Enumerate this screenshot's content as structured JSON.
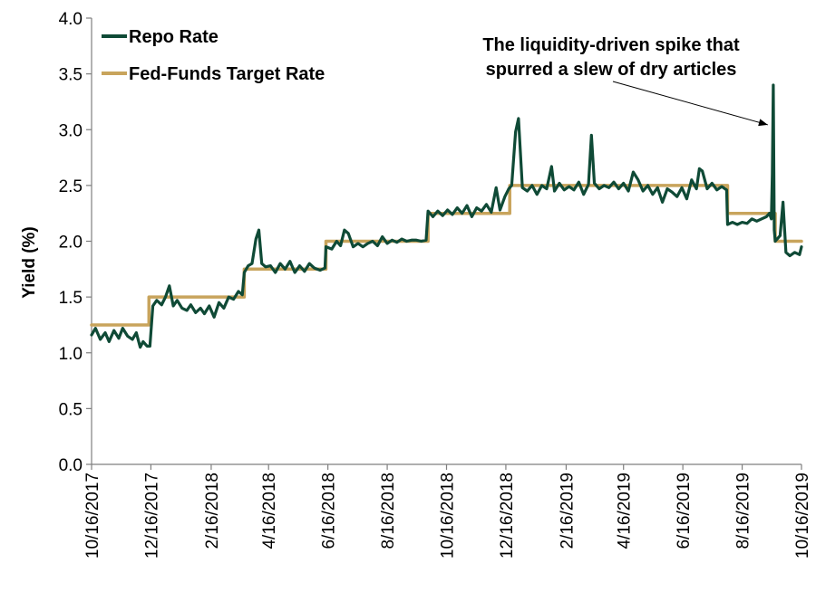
{
  "chart_data": {
    "type": "line",
    "title": "",
    "xlabel": "",
    "ylabel": "Yield (%)",
    "ylim": [
      0,
      4.0
    ],
    "yticks": [
      "0.0",
      "0.5",
      "1.0",
      "1.5",
      "2.0",
      "2.5",
      "3.0",
      "3.5",
      "4.0"
    ],
    "xlim": [
      "2017-10-16",
      "2019-10-16"
    ],
    "xticks": [
      "10/16/2017",
      "12/16/2017",
      "2/16/2018",
      "4/16/2018",
      "6/16/2018",
      "8/16/2018",
      "10/16/2018",
      "12/16/2018",
      "2/16/2019",
      "4/16/2019",
      "6/16/2019",
      "8/16/2019",
      "10/16/2019"
    ],
    "grid": false,
    "legend": "top-left",
    "annotation": {
      "lines": [
        "The liquidity-driven spike that",
        "spurred a slew of dry articles"
      ],
      "points_to": {
        "x": "2019-09-17",
        "y": 3.4
      }
    },
    "series": [
      {
        "name": "Repo Rate",
        "color": "#0f4a36",
        "points": [
          [
            "2017-10-16",
            1.16
          ],
          [
            "2017-10-20",
            1.22
          ],
          [
            "2017-10-25",
            1.12
          ],
          [
            "2017-10-30",
            1.18
          ],
          [
            "2017-11-03",
            1.1
          ],
          [
            "2017-11-08",
            1.2
          ],
          [
            "2017-11-13",
            1.13
          ],
          [
            "2017-11-17",
            1.22
          ],
          [
            "2017-11-22",
            1.15
          ],
          [
            "2017-11-27",
            1.12
          ],
          [
            "2017-12-01",
            1.18
          ],
          [
            "2017-12-05",
            1.05
          ],
          [
            "2017-12-08",
            1.1
          ],
          [
            "2017-12-12",
            1.06
          ],
          [
            "2017-12-15",
            1.06
          ],
          [
            "2017-12-18",
            1.42
          ],
          [
            "2017-12-22",
            1.47
          ],
          [
            "2017-12-27",
            1.43
          ],
          [
            "2017-12-31",
            1.5
          ],
          [
            "2018-01-04",
            1.6
          ],
          [
            "2018-01-08",
            1.42
          ],
          [
            "2018-01-12",
            1.47
          ],
          [
            "2018-01-17",
            1.4
          ],
          [
            "2018-01-22",
            1.38
          ],
          [
            "2018-01-26",
            1.43
          ],
          [
            "2018-01-31",
            1.36
          ],
          [
            "2018-02-05",
            1.4
          ],
          [
            "2018-02-09",
            1.35
          ],
          [
            "2018-02-14",
            1.42
          ],
          [
            "2018-02-19",
            1.32
          ],
          [
            "2018-02-24",
            1.45
          ],
          [
            "2018-03-01",
            1.4
          ],
          [
            "2018-03-06",
            1.5
          ],
          [
            "2018-03-11",
            1.48
          ],
          [
            "2018-03-16",
            1.55
          ],
          [
            "2018-03-20",
            1.52
          ],
          [
            "2018-03-22",
            1.72
          ],
          [
            "2018-03-26",
            1.78
          ],
          [
            "2018-03-30",
            1.8
          ],
          [
            "2018-04-03",
            2.02
          ],
          [
            "2018-04-06",
            2.1
          ],
          [
            "2018-04-09",
            1.8
          ],
          [
            "2018-04-13",
            1.77
          ],
          [
            "2018-04-18",
            1.78
          ],
          [
            "2018-04-23",
            1.72
          ],
          [
            "2018-04-28",
            1.8
          ],
          [
            "2018-05-03",
            1.75
          ],
          [
            "2018-05-08",
            1.82
          ],
          [
            "2018-05-13",
            1.72
          ],
          [
            "2018-05-18",
            1.78
          ],
          [
            "2018-05-23",
            1.73
          ],
          [
            "2018-05-28",
            1.8
          ],
          [
            "2018-06-02",
            1.76
          ],
          [
            "2018-06-08",
            1.74
          ],
          [
            "2018-06-13",
            1.76
          ],
          [
            "2018-06-14",
            1.95
          ],
          [
            "2018-06-20",
            1.93
          ],
          [
            "2018-06-25",
            2.0
          ],
          [
            "2018-06-29",
            1.96
          ],
          [
            "2018-07-03",
            2.1
          ],
          [
            "2018-07-07",
            2.07
          ],
          [
            "2018-07-12",
            1.95
          ],
          [
            "2018-07-17",
            1.98
          ],
          [
            "2018-07-22",
            1.95
          ],
          [
            "2018-07-27",
            1.98
          ],
          [
            "2018-08-01",
            2.0
          ],
          [
            "2018-08-06",
            1.96
          ],
          [
            "2018-08-11",
            2.04
          ],
          [
            "2018-08-16",
            1.98
          ],
          [
            "2018-08-21",
            2.01
          ],
          [
            "2018-08-26",
            1.99
          ],
          [
            "2018-08-31",
            2.02
          ],
          [
            "2018-09-05",
            2.0
          ],
          [
            "2018-09-10",
            2.01
          ],
          [
            "2018-09-15",
            2.01
          ],
          [
            "2018-09-20",
            2.0
          ],
          [
            "2018-09-25",
            2.01
          ],
          [
            "2018-09-27",
            2.27
          ],
          [
            "2018-10-02",
            2.22
          ],
          [
            "2018-10-07",
            2.27
          ],
          [
            "2018-10-12",
            2.23
          ],
          [
            "2018-10-17",
            2.28
          ],
          [
            "2018-10-22",
            2.24
          ],
          [
            "2018-10-27",
            2.3
          ],
          [
            "2018-11-01",
            2.25
          ],
          [
            "2018-11-06",
            2.32
          ],
          [
            "2018-11-11",
            2.22
          ],
          [
            "2018-11-16",
            2.3
          ],
          [
            "2018-11-21",
            2.27
          ],
          [
            "2018-11-26",
            2.33
          ],
          [
            "2018-12-01",
            2.26
          ],
          [
            "2018-12-06",
            2.48
          ],
          [
            "2018-12-10",
            2.28
          ],
          [
            "2018-12-15",
            2.4
          ],
          [
            "2018-12-19",
            2.47
          ],
          [
            "2018-12-22",
            2.5
          ],
          [
            "2018-12-26",
            2.98
          ],
          [
            "2018-12-29",
            3.1
          ],
          [
            "2019-01-02",
            2.48
          ],
          [
            "2019-01-07",
            2.45
          ],
          [
            "2019-01-12",
            2.5
          ],
          [
            "2019-01-17",
            2.42
          ],
          [
            "2019-01-22",
            2.5
          ],
          [
            "2019-01-27",
            2.47
          ],
          [
            "2019-02-01",
            2.67
          ],
          [
            "2019-02-04",
            2.45
          ],
          [
            "2019-02-09",
            2.52
          ],
          [
            "2019-02-14",
            2.46
          ],
          [
            "2019-02-19",
            2.49
          ],
          [
            "2019-02-24",
            2.46
          ],
          [
            "2019-03-01",
            2.53
          ],
          [
            "2019-03-06",
            2.42
          ],
          [
            "2019-03-11",
            2.51
          ],
          [
            "2019-03-14",
            2.95
          ],
          [
            "2019-03-17",
            2.52
          ],
          [
            "2019-03-22",
            2.47
          ],
          [
            "2019-03-27",
            2.5
          ],
          [
            "2019-04-01",
            2.48
          ],
          [
            "2019-04-06",
            2.53
          ],
          [
            "2019-04-11",
            2.47
          ],
          [
            "2019-04-16",
            2.52
          ],
          [
            "2019-04-21",
            2.45
          ],
          [
            "2019-04-26",
            2.62
          ],
          [
            "2019-05-01",
            2.55
          ],
          [
            "2019-05-06",
            2.45
          ],
          [
            "2019-05-11",
            2.5
          ],
          [
            "2019-05-16",
            2.42
          ],
          [
            "2019-05-21",
            2.48
          ],
          [
            "2019-05-26",
            2.35
          ],
          [
            "2019-05-31",
            2.47
          ],
          [
            "2019-06-05",
            2.44
          ],
          [
            "2019-06-10",
            2.4
          ],
          [
            "2019-06-15",
            2.48
          ],
          [
            "2019-06-20",
            2.38
          ],
          [
            "2019-06-25",
            2.55
          ],
          [
            "2019-06-30",
            2.47
          ],
          [
            "2019-07-03",
            2.65
          ],
          [
            "2019-07-06",
            2.63
          ],
          [
            "2019-07-11",
            2.47
          ],
          [
            "2019-07-16",
            2.52
          ],
          [
            "2019-07-21",
            2.46
          ],
          [
            "2019-07-26",
            2.49
          ],
          [
            "2019-07-31",
            2.46
          ],
          [
            "2019-08-01",
            2.15
          ],
          [
            "2019-08-06",
            2.17
          ],
          [
            "2019-08-11",
            2.15
          ],
          [
            "2019-08-16",
            2.17
          ],
          [
            "2019-08-21",
            2.16
          ],
          [
            "2019-08-26",
            2.2
          ],
          [
            "2019-08-31",
            2.18
          ],
          [
            "2019-09-05",
            2.2
          ],
          [
            "2019-09-10",
            2.22
          ],
          [
            "2019-09-13",
            2.25
          ],
          [
            "2019-09-15",
            2.2
          ],
          [
            "2019-09-16",
            2.6
          ],
          [
            "2019-09-17",
            3.4
          ],
          [
            "2019-09-18",
            2.1
          ],
          [
            "2019-09-19",
            2.0
          ],
          [
            "2019-09-24",
            2.05
          ],
          [
            "2019-09-27",
            2.35
          ],
          [
            "2019-09-30",
            1.9
          ],
          [
            "2019-10-04",
            1.87
          ],
          [
            "2019-10-09",
            1.9
          ],
          [
            "2019-10-14",
            1.88
          ],
          [
            "2019-10-16",
            1.95
          ]
        ]
      },
      {
        "name": "Fed-Funds Target Rate",
        "color": "#c8a45c",
        "points": [
          [
            "2017-10-16",
            1.25
          ],
          [
            "2017-12-14",
            1.25
          ],
          [
            "2017-12-14",
            1.5
          ],
          [
            "2018-03-22",
            1.5
          ],
          [
            "2018-03-22",
            1.75
          ],
          [
            "2018-06-14",
            1.75
          ],
          [
            "2018-06-14",
            2.0
          ],
          [
            "2018-09-27",
            2.0
          ],
          [
            "2018-09-27",
            2.25
          ],
          [
            "2018-12-20",
            2.25
          ],
          [
            "2018-12-20",
            2.5
          ],
          [
            "2019-08-01",
            2.5
          ],
          [
            "2019-08-01",
            2.25
          ],
          [
            "2019-09-19",
            2.25
          ],
          [
            "2019-09-19",
            2.0
          ],
          [
            "2019-10-16",
            2.0
          ]
        ]
      }
    ]
  }
}
